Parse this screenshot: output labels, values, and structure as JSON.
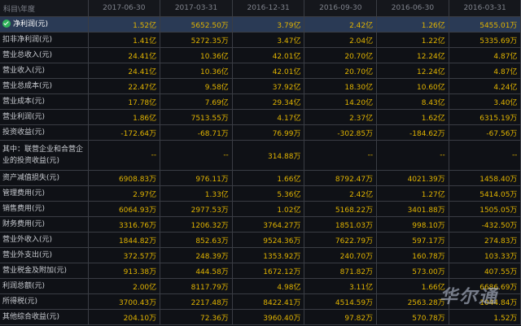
{
  "header": {
    "corner": "科目\\年度",
    "periods": [
      "2017-06-30",
      "2017-03-31",
      "2016-12-31",
      "2016-09-30",
      "2016-06-30",
      "2016-03-31"
    ]
  },
  "rows": [
    {
      "label": "净利润(元)",
      "values": [
        "1.52亿",
        "5652.50万",
        "3.79亿",
        "2.42亿",
        "1.26亿",
        "5455.01万"
      ]
    },
    {
      "label": "扣非净利润(元)",
      "values": [
        "1.41亿",
        "5272.35万",
        "3.47亿",
        "2.04亿",
        "1.22亿",
        "5335.69万"
      ]
    },
    {
      "label": "营业总收入(元)",
      "values": [
        "24.41亿",
        "10.36亿",
        "42.01亿",
        "20.70亿",
        "12.24亿",
        "4.87亿"
      ]
    },
    {
      "label": "营业收入(元)",
      "values": [
        "24.41亿",
        "10.36亿",
        "42.01亿",
        "20.70亿",
        "12.24亿",
        "4.87亿"
      ]
    },
    {
      "label": "营业总成本(元)",
      "values": [
        "22.47亿",
        "9.58亿",
        "37.92亿",
        "18.30亿",
        "10.60亿",
        "4.24亿"
      ]
    },
    {
      "label": "营业成本(元)",
      "values": [
        "17.78亿",
        "7.69亿",
        "29.34亿",
        "14.20亿",
        "8.43亿",
        "3.40亿"
      ]
    },
    {
      "label": "营业利润(元)",
      "values": [
        "1.86亿",
        "7513.55万",
        "4.17亿",
        "2.37亿",
        "1.62亿",
        "6315.19万"
      ]
    },
    {
      "label": "投资收益(元)",
      "values": [
        "-172.64万",
        "-68.71万",
        "76.99万",
        "-302.85万",
        "-184.62万",
        "-67.56万"
      ]
    },
    {
      "label": "其中：联营企业和合营企业的投资收益(元)",
      "values": [
        "--",
        "--",
        "314.88万",
        "--",
        "--",
        "--"
      ]
    },
    {
      "label": "资产减值损失(元)",
      "values": [
        "6908.83万",
        "976.11万",
        "1.66亿",
        "8792.47万",
        "4021.39万",
        "1458.40万"
      ]
    },
    {
      "label": "管理费用(元)",
      "values": [
        "2.97亿",
        "1.33亿",
        "5.36亿",
        "2.42亿",
        "1.27亿",
        "5414.05万"
      ]
    },
    {
      "label": "销售费用(元)",
      "values": [
        "6064.93万",
        "2977.53万",
        "1.02亿",
        "5168.22万",
        "3401.88万",
        "1505.05万"
      ]
    },
    {
      "label": "财务费用(元)",
      "values": [
        "3316.76万",
        "1206.32万",
        "3764.27万",
        "1851.03万",
        "998.10万",
        "-432.50万"
      ]
    },
    {
      "label": "营业外收入(元)",
      "values": [
        "1844.82万",
        "852.63万",
        "9524.36万",
        "7622.79万",
        "597.17万",
        "274.83万"
      ]
    },
    {
      "label": "营业外支出(元)",
      "values": [
        "372.57万",
        "248.39万",
        "1353.92万",
        "240.70万",
        "160.78万",
        "103.33万"
      ]
    },
    {
      "label": "营业税金及附加(元)",
      "values": [
        "913.38万",
        "444.58万",
        "1672.12万",
        "871.82万",
        "573.00万",
        "407.55万"
      ]
    },
    {
      "label": "利润总额(元)",
      "values": [
        "2.00亿",
        "8117.79万",
        "4.98亿",
        "3.11亿",
        "1.66亿",
        "6686.69万"
      ]
    },
    {
      "label": "所得税(元)",
      "values": [
        "3700.43万",
        "2217.48万",
        "8422.41万",
        "4514.59万",
        "2563.28万",
        "1044.84万"
      ]
    },
    {
      "label": "其他综合收益(元)",
      "values": [
        "204.10万",
        "72.36万",
        "3960.40万",
        "97.82万",
        "570.78万",
        "1.52万"
      ]
    }
  ],
  "selected_row_index": 0,
  "watermark": "华尔通",
  "colors": {
    "background": "#0f1116",
    "value_text": "#e0b300",
    "label_text": "#c9ccd2",
    "header_text": "#7f838c",
    "grid": "#3a3d44",
    "selected_row": "#2a3a55",
    "check_icon": "#2fb35a"
  }
}
